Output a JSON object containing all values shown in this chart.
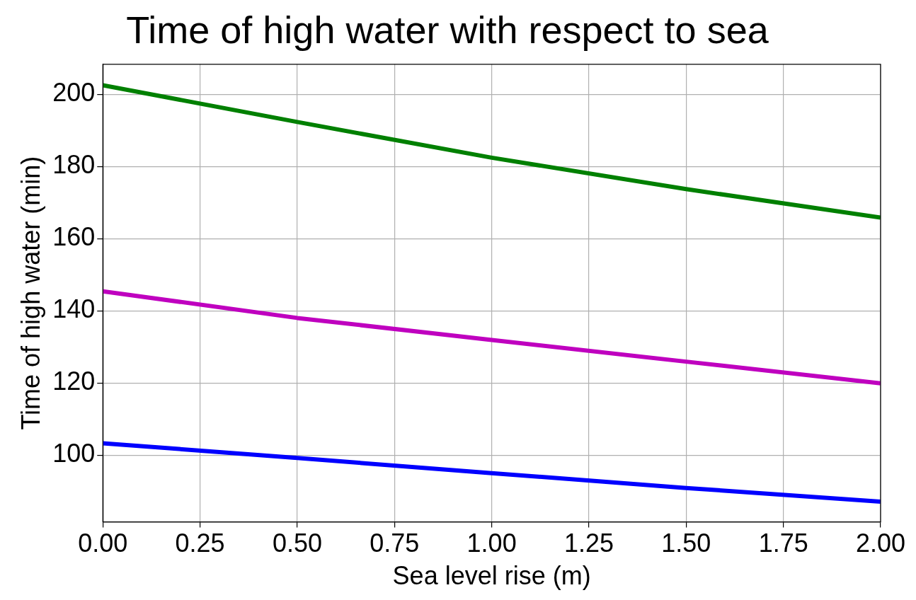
{
  "chart_data": {
    "type": "line",
    "title": "Time of high water with respect to sea",
    "xlabel": "Sea level rise (m)",
    "ylabel": "Time of high water (min)",
    "x": [
      0,
      0.5,
      1,
      1.5,
      2
    ],
    "series": [
      {
        "color": "#008000",
        "values": [
          202.5,
          192.3,
          182.4,
          173.7,
          165.8
        ]
      },
      {
        "color": "#bf00bf",
        "values": [
          145.4,
          138.0,
          131.9,
          125.9,
          119.9
        ]
      },
      {
        "color": "#0000ff",
        "values": [
          103.3,
          99.2,
          95.0,
          90.9,
          87.1
        ]
      }
    ],
    "xlim": [
      0,
      2
    ],
    "ylim": [
      81.5,
      208.3
    ],
    "xticks": [
      {
        "value": 0,
        "label": "0.00"
      },
      {
        "value": 0.25,
        "label": "0.25"
      },
      {
        "value": 0.5,
        "label": "0.50"
      },
      {
        "value": 0.75,
        "label": "0.75"
      },
      {
        "value": 1,
        "label": "1.00"
      },
      {
        "value": 1.25,
        "label": "1.25"
      },
      {
        "value": 1.5,
        "label": "1.50"
      },
      {
        "value": 1.75,
        "label": "1.75"
      },
      {
        "value": 2,
        "label": "2.00"
      }
    ],
    "yticks": [
      100,
      120,
      140,
      160,
      180,
      200
    ],
    "grid": true,
    "legend": false,
    "marker": "none",
    "line_style": "solid"
  }
}
